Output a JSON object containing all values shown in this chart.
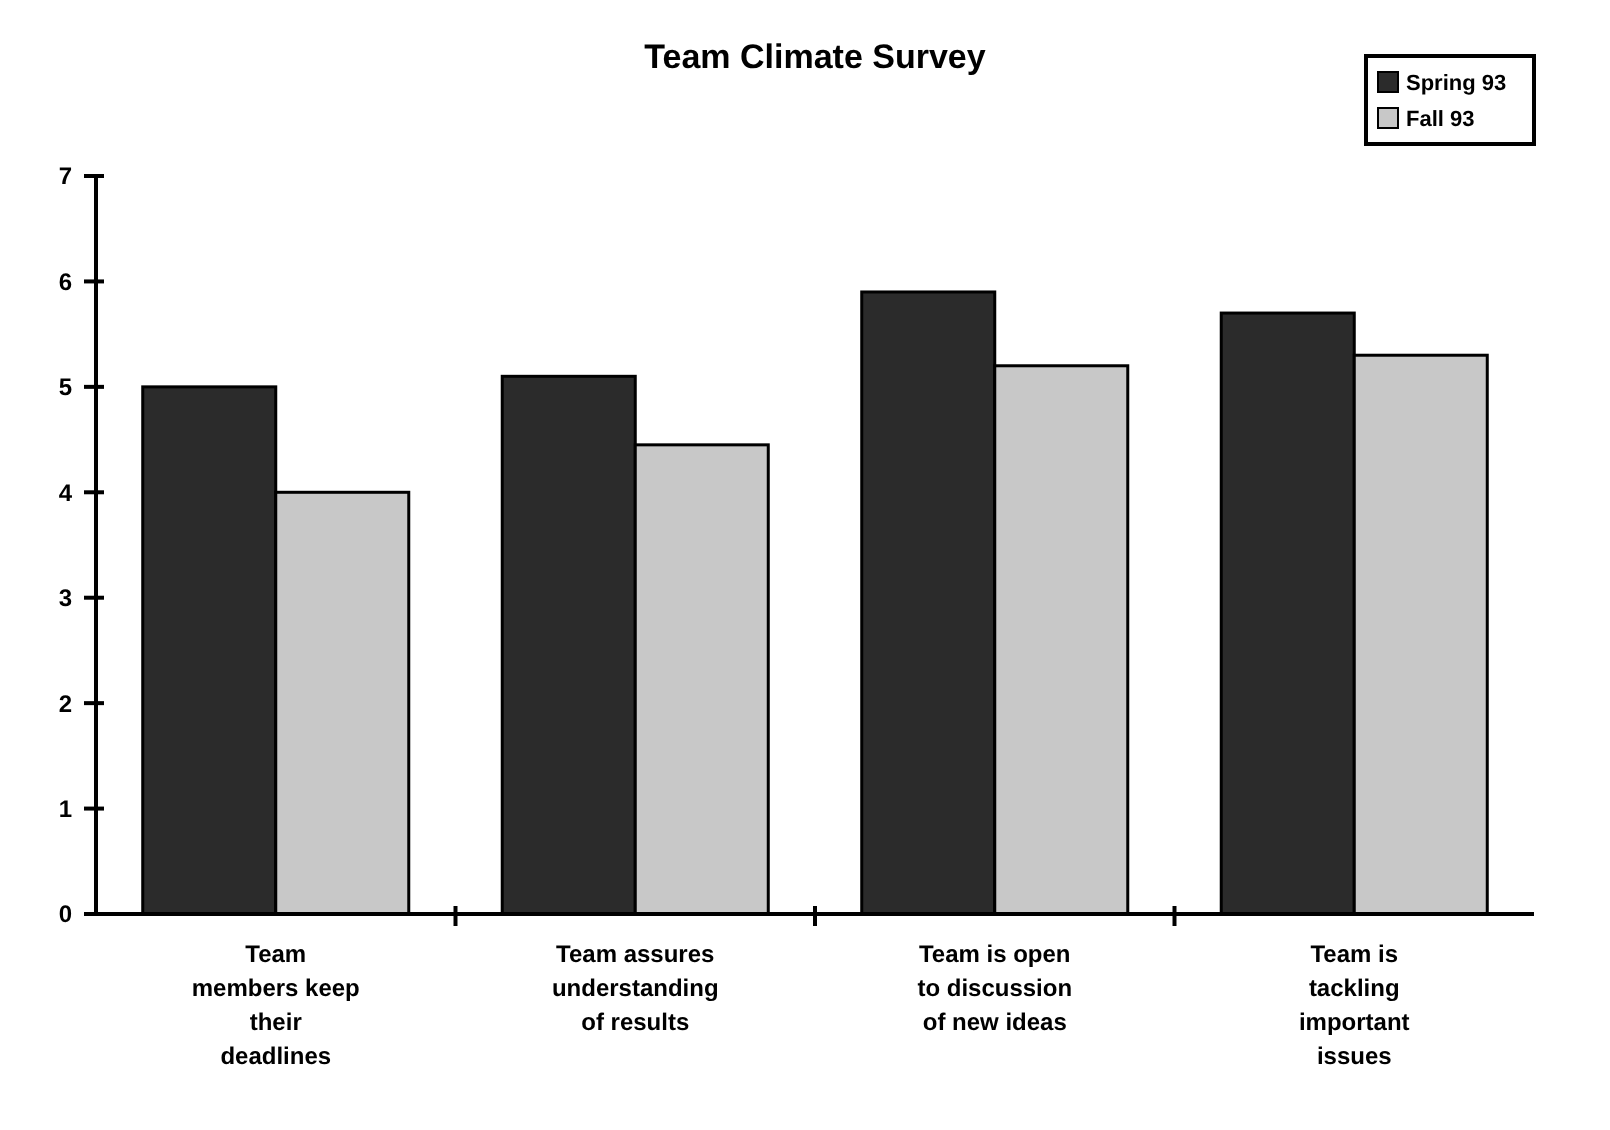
{
  "chart_data": {
    "type": "bar",
    "title": "Team Climate Survey",
    "categories": [
      "Team\nmembers keep\ntheir\ndeadlines",
      "Team assures\nunderstanding\nof results",
      "Team is open\nto discussion\nof new ideas",
      "Team is\ntackling\nimportant\nissues"
    ],
    "series": [
      {
        "name": "Spring 93",
        "color": "#2b2b2b",
        "values": [
          5.0,
          5.1,
          5.9,
          5.7
        ]
      },
      {
        "name": "Fall 93",
        "color": "#c8c8c8",
        "values": [
          4.0,
          4.45,
          5.2,
          5.3
        ]
      }
    ],
    "ylim": [
      0,
      7
    ],
    "yticks": [
      0,
      1,
      2,
      3,
      4,
      5,
      6,
      7
    ],
    "legend": "top right",
    "grid": false
  }
}
